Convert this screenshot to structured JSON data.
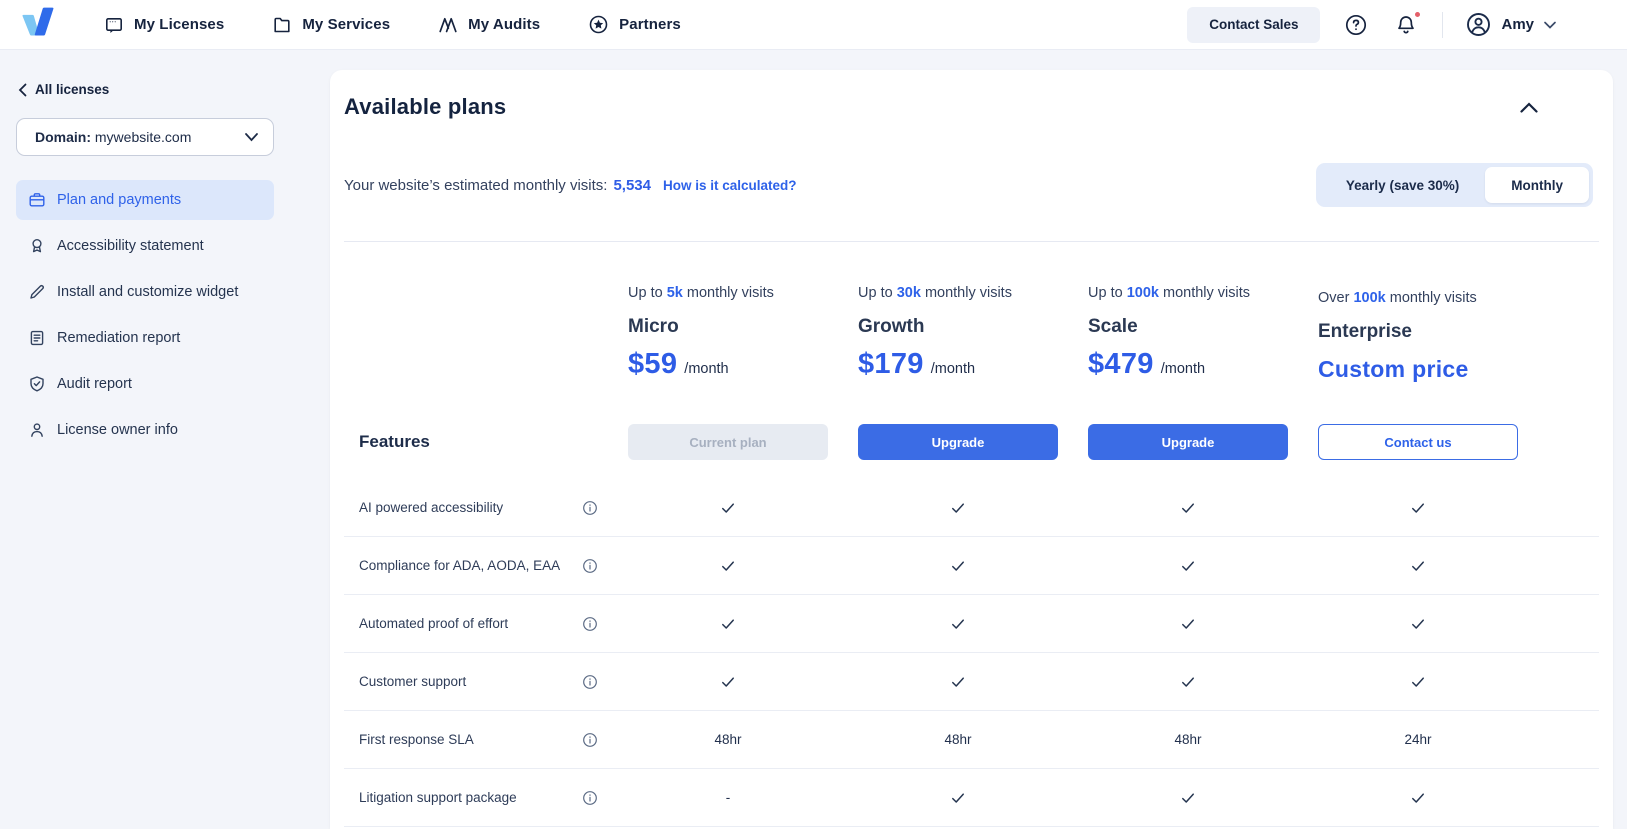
{
  "nav": {
    "items": [
      {
        "label": "My Licenses",
        "icon": "widget-window-icon"
      },
      {
        "label": "My Services",
        "icon": "folder-icon"
      },
      {
        "label": "My Audits",
        "icon": "audit-peaks-icon"
      },
      {
        "label": "Partners",
        "icon": "star-circle-icon"
      }
    ],
    "contact_sales_label": "Contact Sales",
    "user": {
      "name": "Amy"
    },
    "has_notification": true
  },
  "sidebar": {
    "back_label": "All licenses",
    "domain": {
      "label": "Domain:",
      "value": "mywebsite.com"
    },
    "items": [
      {
        "label": "Plan and payments",
        "icon": "briefcase-icon",
        "active": true
      },
      {
        "label": "Accessibility statement",
        "icon": "medal-icon",
        "active": false
      },
      {
        "label": "Install and customize widget",
        "icon": "pencil-icon",
        "active": false
      },
      {
        "label": "Remediation report",
        "icon": "document-icon",
        "active": false
      },
      {
        "label": "Audit report",
        "icon": "shield-check-icon",
        "active": false
      },
      {
        "label": "License owner info",
        "icon": "person-icon",
        "active": false
      }
    ]
  },
  "plans_panel": {
    "title": "Available plans",
    "visits_label": "Your website’s estimated monthly visits:",
    "visits_value": "5,534",
    "visits_link": "How is it calculated?",
    "billing": {
      "yearly_label": "Yearly (save 30%)",
      "monthly_label": "Monthly",
      "selected": "Monthly"
    },
    "features_header": "Features",
    "plans": [
      {
        "visits_prefix": "Up to",
        "visits_highlight": "5k",
        "visits_suffix": "monthly visits",
        "name": "Micro",
        "price": "$59",
        "price_period": "/month",
        "cta": "Current plan",
        "cta_style": "disabled"
      },
      {
        "visits_prefix": "Up to",
        "visits_highlight": "30k",
        "visits_suffix": "monthly visits",
        "name": "Growth",
        "price": "$179",
        "price_period": "/month",
        "cta": "Upgrade",
        "cta_style": "primary"
      },
      {
        "visits_prefix": "Up to",
        "visits_highlight": "100k",
        "visits_suffix": "monthly visits",
        "name": "Scale",
        "price": "$479",
        "price_period": "/month",
        "cta": "Upgrade",
        "cta_style": "primary"
      },
      {
        "visits_prefix": "Over",
        "visits_highlight": "100k",
        "visits_suffix": "monthly visits",
        "name": "Enterprise",
        "price": "Custom price",
        "price_period": "",
        "cta": "Contact us",
        "cta_style": "outline"
      }
    ],
    "features": [
      {
        "label": "AI powered accessibility",
        "values": [
          "check",
          "check",
          "check",
          "check"
        ]
      },
      {
        "label": "Compliance for ADA, AODA, EAA",
        "values": [
          "check",
          "check",
          "check",
          "check"
        ]
      },
      {
        "label": "Automated proof of effort",
        "values": [
          "check",
          "check",
          "check",
          "check"
        ]
      },
      {
        "label": "Customer support",
        "values": [
          "check",
          "check",
          "check",
          "check"
        ]
      },
      {
        "label": "First response SLA",
        "values": [
          "48hr",
          "48hr",
          "48hr",
          "24hr"
        ]
      },
      {
        "label": "Litigation support package",
        "values": [
          "-",
          "check",
          "check",
          "check"
        ]
      }
    ]
  },
  "colors": {
    "accent_blue": "#2f62e9",
    "price_blue": "#2e5ce6",
    "navy_text": "#16233e",
    "active_item_bg": "#dce7fb",
    "toggle_bg": "#e3ebfa",
    "disabled_btn_bg": "#e7ebf2",
    "notification_red": "#e4606a",
    "page_bg": "#f3f5fa",
    "logo_light_blue": "#7cc6f3",
    "logo_blue": "#2f6bea"
  }
}
